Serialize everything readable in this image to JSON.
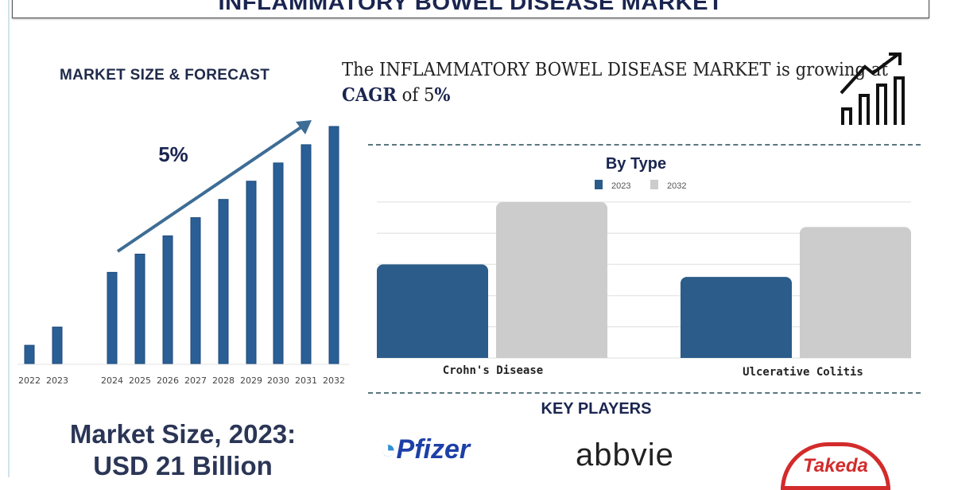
{
  "title": "INFLAMMATORY BOWEL DISEASE MARKET",
  "section_label": "MARKET SIZE & FORECAST",
  "headline": {
    "pre": "The INFLAMMATORY BOWEL DISEASE MARKET is growing at ",
    "bold": "CAGR",
    "mid": " of 5",
    "pct": "%"
  },
  "market_size": {
    "line1": "Market Size, 2023:",
    "line2": "USD 21 Billion"
  },
  "key_players_title": "KEY PLAYERS",
  "key_players": [
    "Pfizer",
    "abbvie",
    "Takeda"
  ],
  "colors": {
    "navy": "#1a2550",
    "bar_blue": "#2a5f96",
    "type_2023": "#2b5c8a",
    "type_2032": "#cccccc"
  },
  "chart_data": [
    {
      "type": "bar",
      "title": "MARKET SIZE & FORECAST",
      "annotation": "5%",
      "categories": [
        "2022",
        "2023",
        "2024",
        "2025",
        "2026",
        "2027",
        "2028",
        "2029",
        "2030",
        "2031",
        "2032"
      ],
      "values": [
        1,
        2,
        5,
        6,
        7,
        8,
        9,
        10,
        11,
        12,
        13
      ],
      "xlabel": "",
      "ylabel": "",
      "ylim": [
        0,
        13
      ]
    },
    {
      "type": "bar",
      "title": "By Type",
      "categories": [
        "Crohn's Disease",
        "Ulcerative Colitis"
      ],
      "series": [
        {
          "name": "2023",
          "values": [
            3.0,
            2.6
          ]
        },
        {
          "name": "2032",
          "values": [
            5.0,
            4.2
          ]
        }
      ],
      "ylim": [
        0,
        5
      ],
      "grid": true,
      "legend": "top-center"
    }
  ]
}
